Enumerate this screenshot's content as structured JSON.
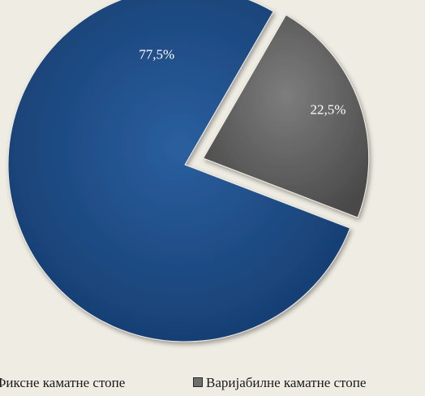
{
  "chart_data": {
    "type": "pie",
    "title": "",
    "categories": [
      "Фиксне каматне стопе",
      "Варијабилне каматне стопе"
    ],
    "values": [
      77.5,
      22.5
    ],
    "labels": [
      "77,5%",
      "22,5%"
    ],
    "colors": [
      "#1f4e8c",
      "#6e6e6e"
    ],
    "exploded": [
      false,
      true
    ],
    "legend_position": "bottom"
  }
}
